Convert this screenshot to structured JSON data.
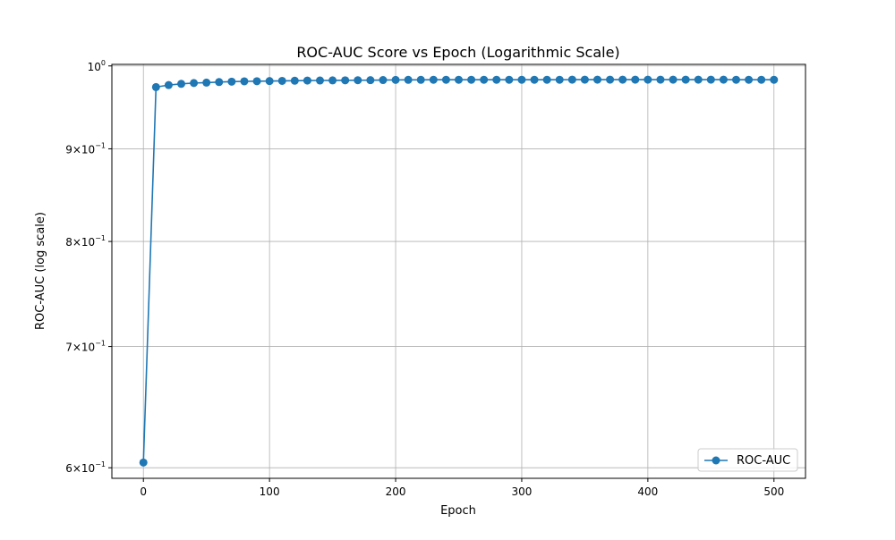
{
  "chart_data": {
    "type": "line",
    "title": "ROC-AUC Score vs Epoch (Logarithmic Scale)",
    "xlabel": "Epoch",
    "ylabel": "ROC-AUC (log scale)",
    "yscale": "log",
    "xlim": [
      -25,
      525
    ],
    "ylim": [
      0.592,
      1.002
    ],
    "grid": true,
    "legend_position": "bottom-right",
    "x_ticks": [
      0,
      100,
      200,
      300,
      400,
      500
    ],
    "y_ticks": [
      {
        "value": 0.6,
        "base": "6",
        "exp": "−1"
      },
      {
        "value": 0.7,
        "base": "7",
        "exp": "−1"
      },
      {
        "value": 0.8,
        "base": "8",
        "exp": "−1"
      },
      {
        "value": 0.9,
        "base": "9",
        "exp": "−1"
      },
      {
        "value": 1.0,
        "base": "10",
        "exp": "0"
      }
    ],
    "tick_times": "×",
    "series": [
      {
        "name": "ROC-AUC",
        "color": "#1f77b4",
        "marker": "circle",
        "x": [
          0,
          10,
          20,
          30,
          40,
          50,
          60,
          70,
          80,
          90,
          100,
          110,
          120,
          130,
          140,
          150,
          160,
          170,
          180,
          190,
          200,
          210,
          220,
          230,
          240,
          250,
          260,
          270,
          280,
          290,
          300,
          310,
          320,
          330,
          340,
          350,
          360,
          370,
          380,
          390,
          400,
          410,
          420,
          430,
          440,
          450,
          460,
          470,
          480,
          490,
          500
        ],
        "values": [
          0.604,
          0.9735,
          0.976,
          0.9775,
          0.9785,
          0.979,
          0.9797,
          0.9802,
          0.9806,
          0.9808,
          0.981,
          0.9812,
          0.9814,
          0.9816,
          0.9817,
          0.9818,
          0.9819,
          0.982,
          0.9821,
          0.9822,
          0.9824,
          0.9825,
          0.9825,
          0.9826,
          0.9826,
          0.9826,
          0.9826,
          0.9826,
          0.9826,
          0.9826,
          0.9826,
          0.9826,
          0.9826,
          0.9826,
          0.9827,
          0.9827,
          0.9827,
          0.9827,
          0.9827,
          0.9827,
          0.9827,
          0.9827,
          0.9827,
          0.9827,
          0.9827,
          0.9827,
          0.9827,
          0.9826,
          0.9826,
          0.9826,
          0.9826
        ]
      }
    ]
  }
}
